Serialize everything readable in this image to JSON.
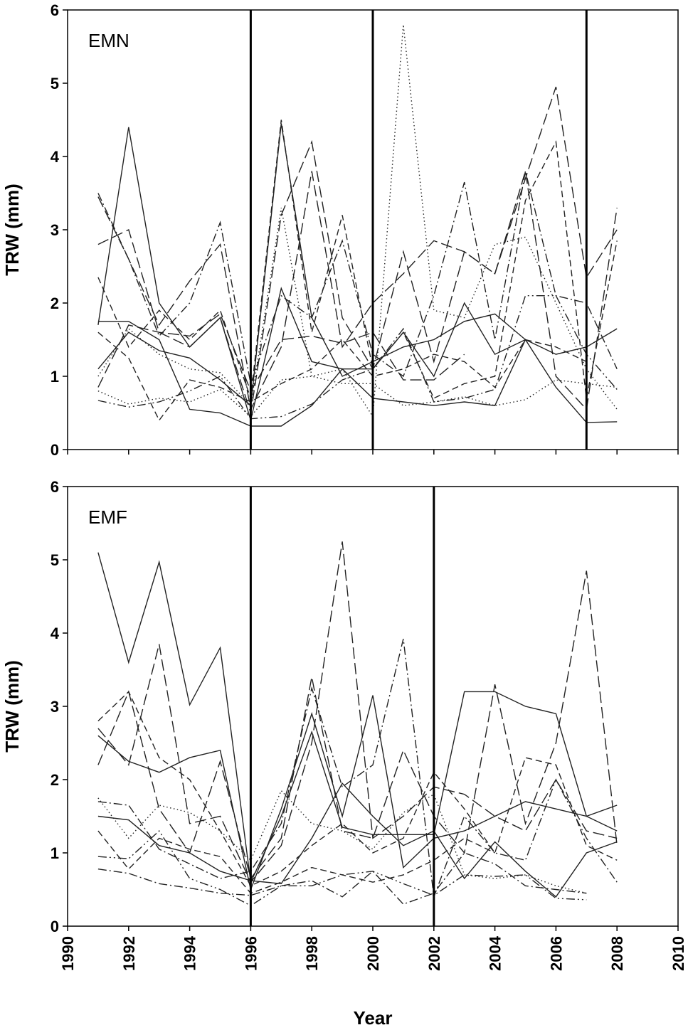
{
  "chart_data": [
    {
      "type": "line",
      "title": "EMN",
      "xlabel": "",
      "ylabel": "TRW (mm)",
      "xlim": [
        1990,
        2010
      ],
      "ylim": [
        0,
        6
      ],
      "yticks": [
        "0",
        "1",
        "2",
        "3",
        "4",
        "5",
        "6"
      ],
      "xticks": [],
      "event_years": [
        1996,
        2000,
        2007
      ],
      "series": [
        {
          "name": "s1",
          "style": "solid",
          "x": [
            1991,
            1992,
            1993,
            1994,
            1995,
            1996,
            1997,
            1998,
            1999,
            2000,
            2001,
            2002,
            2003,
            2004,
            2005,
            2006,
            2007,
            2008
          ],
          "y": [
            1.7,
            4.4,
            2.0,
            1.4,
            1.8,
            0.4,
            2.2,
            1.2,
            1.1,
            1.1,
            1.6,
            1.0,
            2.0,
            1.3,
            1.5,
            1.3,
            1.4,
            1.65
          ]
        },
        {
          "name": "s2",
          "style": "solid",
          "x": [
            1991,
            1992,
            1993,
            1994,
            1995,
            1996,
            1997,
            1998,
            1999,
            2000,
            2001,
            2002,
            2003,
            2004,
            2005,
            2006,
            2007,
            2008
          ],
          "y": [
            1.75,
            1.75,
            1.5,
            0.55,
            0.5,
            0.32,
            0.32,
            0.6,
            1.1,
            0.7,
            0.65,
            0.6,
            0.65,
            0.6,
            1.5,
            0.85,
            0.37,
            0.38
          ]
        },
        {
          "name": "s3",
          "style": "solid",
          "x": [
            1991,
            1992,
            1993,
            1994,
            1995,
            1996,
            1997,
            1998,
            1999,
            2000,
            2001,
            2002,
            2003,
            2004,
            2005
          ],
          "y": [
            1.1,
            1.6,
            1.35,
            1.25,
            0.95,
            0.6,
            4.45,
            1.8,
            1.0,
            1.2,
            1.4,
            1.5,
            1.75,
            1.85,
            1.5
          ]
        },
        {
          "name": "s4",
          "style": "long-dash",
          "x": [
            1991,
            1992,
            1993,
            1994,
            1995,
            1996,
            1997,
            1998,
            1999,
            2000,
            2001,
            2002,
            2003,
            2004,
            2005,
            2006,
            2007,
            2008
          ],
          "y": [
            2.8,
            3.0,
            1.6,
            1.4,
            1.8,
            0.5,
            3.2,
            4.2,
            1.8,
            1.1,
            2.7,
            1.2,
            2.7,
            2.4,
            3.8,
            1.0,
            0.55,
            3.3
          ]
        },
        {
          "name": "s5",
          "style": "long-dash",
          "x": [
            1991,
            1992,
            1993,
            1994,
            1995,
            1996,
            1997,
            1998,
            1999,
            2000,
            2001,
            2002,
            2003,
            2004,
            2005,
            2006,
            2007,
            2008
          ],
          "y": [
            3.45,
            2.6,
            1.7,
            2.3,
            2.8,
            0.55,
            1.4,
            3.8,
            1.4,
            2.0,
            2.4,
            2.85,
            2.7,
            2.4,
            3.7,
            4.95,
            2.35,
            3.0
          ]
        },
        {
          "name": "s6",
          "style": "dash",
          "x": [
            1991,
            1992,
            1993,
            1994,
            1995,
            1996,
            1997,
            1998,
            1999,
            2000,
            2001,
            2002,
            2003,
            2004,
            2005,
            2006,
            2007,
            2008
          ],
          "y": [
            2.35,
            1.4,
            1.9,
            1.5,
            1.9,
            0.7,
            4.5,
            1.6,
            3.2,
            1.1,
            1.6,
            0.7,
            0.9,
            1.0,
            3.4,
            4.2,
            0.7,
            2.85
          ]
        },
        {
          "name": "s7",
          "style": "dash-dot",
          "x": [
            1991,
            1992,
            1993,
            1994,
            1995,
            1996,
            1997,
            1998,
            1999,
            2000,
            2001,
            2002,
            2003,
            2004,
            2005,
            2006,
            2007,
            2008
          ],
          "y": [
            3.5,
            2.6,
            1.55,
            2.0,
            3.1,
            0.9,
            2.1,
            1.8,
            2.85,
            1.3,
            1.0,
            2.1,
            3.65,
            1.5,
            3.8,
            2.1,
            2.0,
            1.1
          ]
        },
        {
          "name": "s8",
          "style": "dash-dot-dot",
          "x": [
            1991,
            1992,
            1993,
            1994,
            1995,
            1996,
            1997,
            1998,
            1999,
            2000,
            2001,
            2002,
            2003,
            2004,
            2005,
            2006,
            2007,
            2008
          ],
          "y": [
            0.67,
            0.58,
            0.65,
            0.8,
            1.0,
            0.42,
            0.45,
            0.62,
            0.95,
            1.1,
            1.65,
            0.65,
            0.7,
            0.82,
            2.1,
            2.1,
            1.3,
            0.82
          ]
        },
        {
          "name": "s9",
          "style": "dot",
          "x": [
            1991,
            1992,
            1993,
            1994,
            1995,
            1996,
            1997,
            1998,
            1999,
            2000,
            2001,
            2002,
            2003,
            2004,
            2005,
            2006,
            2007,
            2008
          ],
          "y": [
            1.0,
            1.65,
            1.3,
            1.1,
            1.05,
            0.6,
            3.3,
            1.0,
            1.1,
            0.45,
            5.8,
            1.9,
            1.8,
            2.8,
            2.9,
            2.0,
            1.1,
            0.55
          ]
        },
        {
          "name": "s10",
          "style": "dot",
          "x": [
            1991,
            1992,
            1993,
            1994,
            1995,
            1996,
            1997,
            1998,
            1999,
            2000,
            2001,
            2002,
            2003,
            2004,
            2005,
            2006,
            2007,
            2008
          ],
          "y": [
            0.8,
            0.62,
            0.7,
            0.65,
            0.82,
            0.45,
            0.95,
            1.0,
            0.9,
            0.9,
            0.6,
            0.65,
            0.72,
            0.6,
            0.68,
            0.95,
            0.9,
            0.85
          ]
        },
        {
          "name": "s11",
          "style": "dash",
          "x": [
            1991,
            1992,
            1993,
            1994,
            1995,
            1996,
            1997,
            1998,
            1999,
            2000,
            2001,
            2002,
            2003,
            2004,
            2005,
            2006,
            2007
          ],
          "y": [
            1.6,
            1.25,
            0.4,
            0.95,
            0.85,
            0.65,
            0.9,
            1.1,
            1.5,
            1.0,
            1.1,
            1.3,
            1.2,
            0.85,
            1.5,
            1.4,
            1.2
          ]
        },
        {
          "name": "s12",
          "style": "long-dash",
          "x": [
            1991,
            1992,
            1993,
            1994,
            1995,
            1996,
            1997,
            1998,
            1999,
            2000,
            2001,
            2002,
            2003
          ],
          "y": [
            0.85,
            1.7,
            1.6,
            1.55,
            1.85,
            0.8,
            1.5,
            1.55,
            1.45,
            1.6,
            0.95,
            0.95,
            1.3
          ]
        }
      ]
    },
    {
      "type": "line",
      "title": "EMF",
      "xlabel": "Year",
      "ylabel": "TRW (mm)",
      "xlim": [
        1990,
        2010
      ],
      "ylim": [
        0,
        6
      ],
      "yticks": [
        "0",
        "1",
        "2",
        "3",
        "4",
        "5",
        "6"
      ],
      "xticks": [
        "1990",
        "1992",
        "1994",
        "1996",
        "1998",
        "2000",
        "2002",
        "2004",
        "2006",
        "2008",
        "2010"
      ],
      "event_years": [
        1996,
        2002
      ],
      "series": [
        {
          "name": "s1",
          "style": "solid",
          "x": [
            1991,
            1992,
            1993,
            1994,
            1995,
            1996,
            1997,
            1998,
            1999,
            2000,
            2001,
            2002,
            2003,
            2004,
            2005,
            2006,
            2007,
            2008
          ],
          "y": [
            5.1,
            3.6,
            4.97,
            3.02,
            3.8,
            0.6,
            1.5,
            2.65,
            1.35,
            1.25,
            1.25,
            1.25,
            3.2,
            3.2,
            3.0,
            2.9,
            1.5,
            1.65
          ]
        },
        {
          "name": "s2",
          "style": "solid",
          "x": [
            1991,
            1992,
            1993,
            1994,
            1995,
            1996,
            1997,
            1998,
            1999,
            2000,
            2001,
            2002,
            2003,
            2004,
            2005,
            2006,
            2007,
            2008
          ],
          "y": [
            2.6,
            2.25,
            2.1,
            2.3,
            2.4,
            0.5,
            1.6,
            2.9,
            1.5,
            3.15,
            0.8,
            1.2,
            1.3,
            1.5,
            1.7,
            1.6,
            1.5,
            1.3
          ]
        },
        {
          "name": "s3",
          "style": "solid",
          "x": [
            1991,
            1992,
            1993,
            1994,
            1995,
            1996,
            1997,
            1998,
            1999,
            2000,
            2001,
            2002,
            2003,
            2004,
            2005,
            2006,
            2007,
            2008
          ],
          "y": [
            1.5,
            1.45,
            1.1,
            1.0,
            0.75,
            0.62,
            0.58,
            1.2,
            1.95,
            1.5,
            1.1,
            1.3,
            0.65,
            1.15,
            0.75,
            0.4,
            1.0,
            1.15
          ]
        },
        {
          "name": "s4",
          "style": "long-dash",
          "x": [
            1991,
            1992,
            1993,
            1994,
            1995,
            1996,
            1997,
            1998,
            1999,
            2000,
            2001,
            2002,
            2003,
            2004,
            2005,
            2006,
            2007,
            2008
          ],
          "y": [
            2.2,
            3.2,
            1.6,
            1.0,
            2.25,
            0.65,
            1.2,
            3.4,
            1.3,
            1.2,
            2.4,
            1.5,
            1.0,
            3.3,
            1.4,
            2.5,
            4.85,
            1.1
          ]
        },
        {
          "name": "s5",
          "style": "long-dash",
          "x": [
            1991,
            1992,
            1993,
            1994,
            1995,
            1996,
            1997,
            1998,
            1999,
            2000,
            2001,
            2002,
            2003,
            2004,
            2005,
            2006,
            2007,
            2008
          ],
          "y": [
            2.7,
            2.2,
            3.85,
            1.4,
            1.5,
            0.6,
            1.1,
            2.5,
            5.25,
            1.2,
            1.5,
            1.9,
            1.8,
            1.5,
            1.3,
            2.0,
            1.3,
            1.2
          ]
        },
        {
          "name": "s6",
          "style": "dash",
          "x": [
            1991,
            1992,
            1993,
            1994,
            1995,
            1996,
            1997,
            1998,
            1999,
            2000,
            2001,
            2002,
            2003,
            2004,
            2005,
            2006,
            2007,
            2008
          ],
          "y": [
            2.8,
            3.2,
            2.3,
            2.0,
            1.3,
            0.55,
            0.75,
            1.1,
            1.4,
            1.0,
            1.2,
            2.1,
            1.6,
            1.0,
            2.3,
            2.2,
            1.1,
            0.9
          ]
        },
        {
          "name": "s7",
          "style": "dash-dot",
          "x": [
            1991,
            1992,
            1993,
            1994,
            1995,
            1996,
            1997,
            1998,
            1999,
            2000,
            2001,
            2002,
            2003,
            2004,
            2005,
            2006,
            2007,
            2008
          ],
          "y": [
            1.7,
            1.65,
            1.05,
            0.85,
            0.65,
            0.75,
            1.4,
            3.25,
            1.9,
            2.2,
            3.92,
            0.4,
            1.5,
            1.0,
            0.9,
            2.0,
            1.2,
            0.6
          ]
        },
        {
          "name": "s8",
          "style": "dash-dot-dot",
          "x": [
            1991,
            1992,
            1993,
            1994,
            1995,
            1996,
            1997,
            1998,
            1999,
            2000,
            2001,
            2002,
            2003,
            2004,
            2005,
            2006,
            2007
          ],
          "y": [
            0.95,
            0.92,
            1.3,
            0.65,
            0.5,
            0.28,
            0.55,
            0.55,
            0.7,
            0.75,
            0.58,
            0.42,
            0.7,
            0.68,
            0.7,
            0.38,
            0.36
          ]
        },
        {
          "name": "s9",
          "style": "dot",
          "x": [
            1991,
            1992,
            1993,
            1994,
            1995,
            1996,
            1997,
            1998,
            1999,
            2000,
            2001,
            2002,
            2003,
            2004,
            2005,
            2006,
            2007
          ],
          "y": [
            1.75,
            1.2,
            1.65,
            1.55,
            1.3,
            0.9,
            1.85,
            1.4,
            1.3,
            1.05,
            1.55,
            1.8,
            0.7,
            0.65,
            0.7,
            0.55,
            0.45
          ]
        },
        {
          "name": "s10",
          "style": "dash-dot",
          "x": [
            1991,
            1992,
            1993,
            1994,
            1995,
            1996,
            1997,
            1998,
            1999,
            2000,
            2001,
            2002,
            2003,
            2004,
            2005,
            2006,
            2007
          ],
          "y": [
            0.78,
            0.72,
            0.58,
            0.52,
            0.45,
            0.42,
            0.55,
            0.62,
            0.4,
            0.75,
            0.3,
            0.45,
            1.0,
            0.85,
            0.55,
            0.5,
            0.45
          ]
        },
        {
          "name": "s11",
          "style": "dash",
          "x": [
            1991,
            1992,
            1993,
            1994,
            1995,
            1996,
            1997,
            1998,
            1999,
            2000,
            2001,
            2002,
            2003,
            2004
          ],
          "y": [
            1.3,
            0.78,
            1.2,
            1.05,
            0.95,
            0.45,
            0.6,
            0.8,
            0.7,
            0.6,
            0.7,
            0.9,
            1.2,
            1.0
          ]
        }
      ]
    }
  ]
}
